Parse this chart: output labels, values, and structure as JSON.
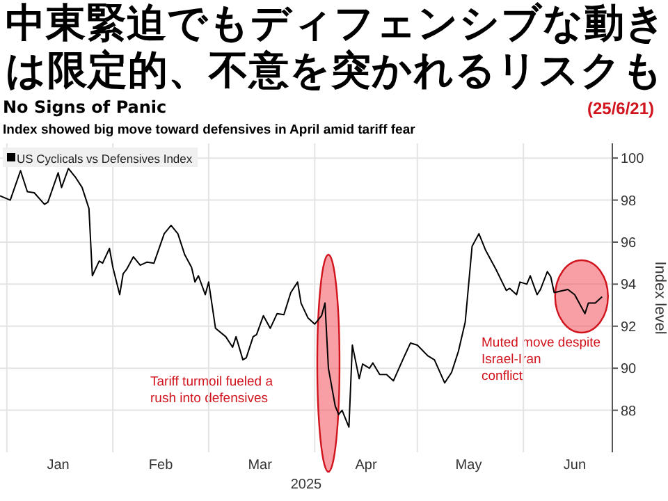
{
  "chart_data": {
    "type": "line",
    "title": "中東緊迫でもディフェンシブな動きは限定的、不意を突かれるリスクも",
    "subtitle": "No Signs of Panic",
    "xlabel": "2025",
    "ylabel": "Index level",
    "annotations": [
      "(25/6/21)",
      "Index showed big move toward defensives in April amid tariff fear",
      "Tariff turmoil fueled a rush into defensives",
      "Muted move despite Israel-Iran conflict"
    ],
    "xlim": [
      "2024-12-30",
      "2025-06-27"
    ],
    "xticks": [
      {
        "value": "2025-01-01",
        "label": null
      },
      {
        "value": "2025-01-16",
        "label": "Jan"
      },
      {
        "value": "2025-02-01",
        "label": null
      },
      {
        "value": "2025-02-15",
        "label": "Feb"
      },
      {
        "value": "2025-03-01",
        "label": null
      },
      {
        "value": "2025-03-16",
        "label": "Mar"
      },
      {
        "value": "2025-04-01",
        "label": null
      },
      {
        "value": "2025-04-16",
        "label": "Apr"
      },
      {
        "value": "2025-05-01",
        "label": null
      },
      {
        "value": "2025-05-16",
        "label": "May"
      },
      {
        "value": "2025-06-01",
        "label": null
      },
      {
        "value": "2025-06-16",
        "label": "Jun"
      }
    ],
    "ylim": [
      86,
      100.7
    ],
    "yticks": [
      88,
      90,
      92,
      94,
      96,
      98,
      100
    ],
    "grid": true,
    "legend": "top left",
    "series": [
      {
        "name": "US Cyclicals vs Defensives Index",
        "color": "#000000",
        "x": [
          "2024-12-30",
          "2025-01-02",
          "2025-01-05",
          "2025-01-07",
          "2025-01-09",
          "2025-01-12",
          "2025-01-13",
          "2025-01-16",
          "2025-01-17",
          "2025-01-19",
          "2025-01-21",
          "2025-01-23",
          "2025-01-25",
          "2025-01-26",
          "2025-01-28",
          "2025-01-29",
          "2025-01-31",
          "2025-02-01",
          "2025-02-03",
          "2025-02-04",
          "2025-02-05",
          "2025-02-07",
          "2025-02-09",
          "2025-02-11",
          "2025-02-13",
          "2025-02-16",
          "2025-02-18",
          "2025-02-20",
          "2025-02-22",
          "2025-02-24",
          "2025-02-25",
          "2025-02-26",
          "2025-02-28",
          "2025-03-01",
          "2025-03-03",
          "2025-03-06",
          "2025-03-08",
          "2025-03-09",
          "2025-03-11",
          "2025-03-12",
          "2025-03-14",
          "2025-03-15",
          "2025-03-17",
          "2025-03-19",
          "2025-03-21",
          "2025-03-23",
          "2025-03-25",
          "2025-03-27",
          "2025-03-28",
          "2025-03-30",
          "2025-04-01",
          "2025-04-03",
          "2025-04-04",
          "2025-04-05",
          "2025-04-07",
          "2025-04-08",
          "2025-04-09",
          "2025-04-11",
          "2025-04-12",
          "2025-04-14",
          "2025-04-15",
          "2025-04-17",
          "2025-04-18",
          "2025-04-20",
          "2025-04-22",
          "2025-04-24",
          "2025-04-27",
          "2025-04-29",
          "2025-05-01",
          "2025-05-04",
          "2025-05-06",
          "2025-05-09",
          "2025-05-11",
          "2025-05-13",
          "2025-05-15",
          "2025-05-17",
          "2025-05-19",
          "2025-05-21",
          "2025-05-24",
          "2025-05-27",
          "2025-05-28",
          "2025-05-30",
          "2025-05-31",
          "2025-06-02",
          "2025-06-03",
          "2025-06-05",
          "2025-06-06",
          "2025-06-08",
          "2025-06-09",
          "2025-06-10",
          "2025-06-14",
          "2025-06-16",
          "2025-06-19",
          "2025-06-20",
          "2025-06-22",
          "2025-06-24"
        ],
        "values": [
          98.2,
          98.0,
          99.4,
          98.4,
          98.35,
          97.8,
          97.9,
          99.3,
          98.6,
          99.5,
          99.1,
          98.6,
          97.6,
          94.4,
          95.1,
          95.0,
          95.7,
          94.8,
          93.5,
          94.5,
          94.7,
          95.3,
          94.9,
          95.05,
          95.0,
          96.4,
          96.8,
          96.4,
          95.4,
          94.8,
          94.1,
          94.4,
          93.5,
          94.1,
          91.9,
          91.5,
          91.0,
          91.5,
          90.4,
          90.5,
          91.5,
          91.6,
          92.5,
          91.9,
          92.6,
          92.55,
          93.6,
          94.1,
          93.1,
          92.4,
          92.1,
          92.5,
          93.1,
          90.0,
          88.2,
          87.8,
          88.0,
          87.2,
          91.1,
          89.5,
          90.2,
          90.0,
          90.25,
          89.7,
          89.7,
          89.4,
          90.5,
          91.2,
          91.1,
          90.6,
          90.4,
          89.3,
          89.8,
          90.8,
          92.2,
          95.8,
          96.4,
          95.6,
          94.7,
          93.7,
          93.8,
          93.5,
          94.1,
          94.0,
          94.4,
          93.5,
          93.75,
          94.6,
          94.35,
          93.6,
          93.75,
          93.5,
          92.6,
          93.1,
          93.1,
          93.4
        ]
      }
    ]
  }
}
